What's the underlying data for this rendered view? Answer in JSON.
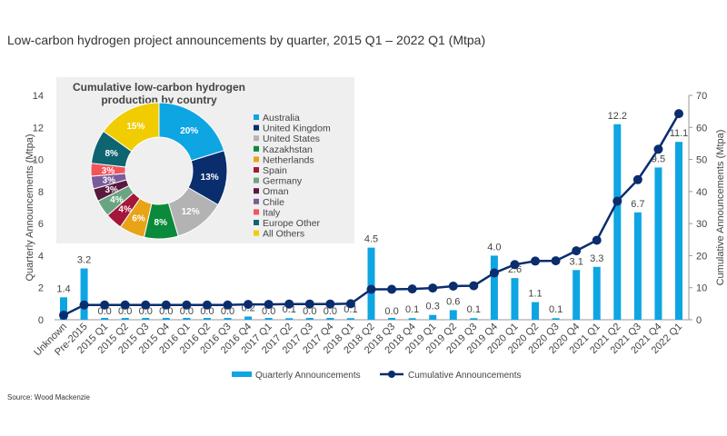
{
  "title": "Low-carbon hydrogen project announcements by quarter, 2015 Q1 – 2022 Q1 (Mtpa)",
  "source": "Source: Wood Mackenzie",
  "chart_data": [
    {
      "type": "bar+line",
      "categories": [
        "Unknown",
        "Pre-2015",
        "2015 Q1",
        "2015 Q2",
        "2015 Q3",
        "2015 Q4",
        "2016 Q1",
        "2016 Q2",
        "2016 Q3",
        "2016 Q4",
        "2017 Q1",
        "2017 Q2",
        "2017 Q3",
        "2017 Q4",
        "2018 Q1",
        "2018 Q2",
        "2018 Q3",
        "2018 Q4",
        "2019 Q1",
        "2019 Q2",
        "2019 Q3",
        "2019 Q4",
        "2020 Q1",
        "2020 Q2",
        "2020 Q3",
        "2020 Q4",
        "2021 Q1",
        "2021 Q2",
        "2021 Q3",
        "2021 Q4",
        "2022 Q1"
      ],
      "series": [
        {
          "name": "Quarterly Announcements",
          "type": "bar",
          "axis": "left",
          "color": "#0ea5e3",
          "values": [
            1.4,
            3.2,
            0.0,
            0.0,
            0.0,
            0.0,
            0.0,
            0.0,
            0.0,
            0.2,
            0.0,
            0.1,
            0.0,
            0.0,
            0.1,
            4.5,
            0.0,
            0.1,
            0.3,
            0.6,
            0.1,
            4.0,
            2.6,
            1.1,
            0.1,
            3.1,
            3.3,
            12.2,
            6.7,
            9.5,
            11.1
          ]
        },
        {
          "name": "Cumulative Announcements",
          "type": "line",
          "axis": "right",
          "color": "#0a2d6e",
          "values": [
            1.4,
            4.6,
            4.6,
            4.6,
            4.6,
            4.6,
            4.6,
            4.6,
            4.6,
            4.8,
            4.8,
            4.9,
            4.9,
            4.9,
            5.0,
            9.5,
            9.5,
            9.6,
            9.9,
            10.5,
            10.6,
            14.6,
            17.2,
            18.3,
            18.4,
            21.5,
            24.8,
            37.0,
            43.7,
            53.2,
            64.3
          ]
        }
      ],
      "ylabel": "Quarterly Announcements (Mtpa)",
      "ylim": [
        0,
        14
      ],
      "yticks": [
        "0",
        "2",
        "4",
        "6",
        "8",
        "10",
        "12",
        "14"
      ],
      "y2label": "Cumulative Announcements (Mtpa)",
      "y2lim": [
        0,
        70
      ],
      "y2ticks": [
        "0",
        "10",
        "20",
        "30",
        "40",
        "50",
        "60",
        "70"
      ],
      "grid": false,
      "legend": "bottom"
    },
    {
      "type": "pie",
      "donut": true,
      "title": "Cumulative low-carbon hydrogen production by country",
      "title_lines": [
        "Cumulative low-carbon hydrogen",
        "production by country"
      ],
      "legend": "right",
      "slices": [
        {
          "label": "Australia",
          "value": 20,
          "text": "20%",
          "color": "#0ea5e3"
        },
        {
          "label": "United Kingdom",
          "value": 13,
          "text": "13%",
          "color": "#0a2d6e"
        },
        {
          "label": "United States",
          "value": 12,
          "text": "12%",
          "color": "#b3b3b3"
        },
        {
          "label": "Kazakhstan",
          "value": 8,
          "text": "8%",
          "color": "#0a8a3a"
        },
        {
          "label": "Netherlands",
          "value": 6,
          "text": "6%",
          "color": "#e8a317"
        },
        {
          "label": "Spain",
          "value": 4,
          "text": "4%",
          "color": "#a3173a"
        },
        {
          "label": "Germany",
          "value": 4,
          "text": "4%",
          "color": "#6aa582"
        },
        {
          "label": "Oman",
          "value": 3,
          "text": "3%",
          "color": "#5a1a3e"
        },
        {
          "label": "Chile",
          "value": 3,
          "text": "3%",
          "color": "#7a5c9a"
        },
        {
          "label": "Italy",
          "value": 3,
          "text": "3%",
          "color": "#f2545b"
        },
        {
          "label": "Europe Other",
          "value": 8,
          "text": "8%",
          "color": "#0e6470"
        },
        {
          "label": "All Others",
          "value": 15,
          "text": "15%",
          "color": "#f0cc00"
        }
      ]
    }
  ]
}
